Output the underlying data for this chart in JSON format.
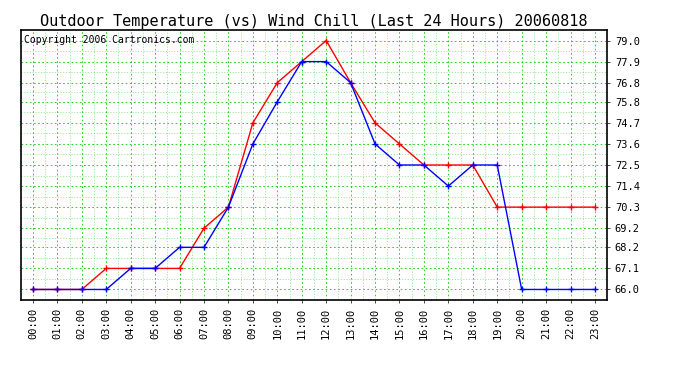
{
  "title": "Outdoor Temperature (vs) Wind Chill (Last 24 Hours) 20060818",
  "copyright": "Copyright 2006 Cartronics.com",
  "x_labels": [
    "00:00",
    "01:00",
    "02:00",
    "03:00",
    "04:00",
    "05:00",
    "06:00",
    "07:00",
    "08:00",
    "09:00",
    "10:00",
    "11:00",
    "12:00",
    "13:00",
    "14:00",
    "15:00",
    "16:00",
    "17:00",
    "18:00",
    "19:00",
    "20:00",
    "21:00",
    "22:00",
    "23:00"
  ],
  "temp": [
    66.0,
    66.0,
    66.0,
    67.1,
    67.1,
    67.1,
    67.1,
    69.2,
    70.3,
    74.7,
    76.8,
    77.9,
    79.0,
    76.8,
    74.7,
    73.6,
    72.5,
    72.5,
    72.5,
    70.3,
    70.3,
    70.3,
    70.3,
    70.3
  ],
  "wind_chill": [
    66.0,
    66.0,
    66.0,
    66.0,
    67.1,
    67.1,
    68.2,
    68.2,
    70.3,
    73.6,
    75.8,
    77.9,
    77.9,
    76.8,
    73.6,
    72.5,
    72.5,
    71.4,
    72.5,
    72.5,
    66.0,
    66.0,
    66.0,
    66.0
  ],
  "temp_color": "#ff0000",
  "wind_chill_color": "#0000ff",
  "grid_color_dotted": "#00cc00",
  "grid_color_dashed": "#008800",
  "bg_color": "#ffffff",
  "y_ticks": [
    66.0,
    67.1,
    68.2,
    69.2,
    70.3,
    71.4,
    72.5,
    73.6,
    74.7,
    75.8,
    76.8,
    77.9,
    79.0
  ],
  "ylim": [
    65.45,
    79.55
  ],
  "title_fontsize": 11,
  "tick_fontsize": 7.5,
  "copyright_fontsize": 7
}
